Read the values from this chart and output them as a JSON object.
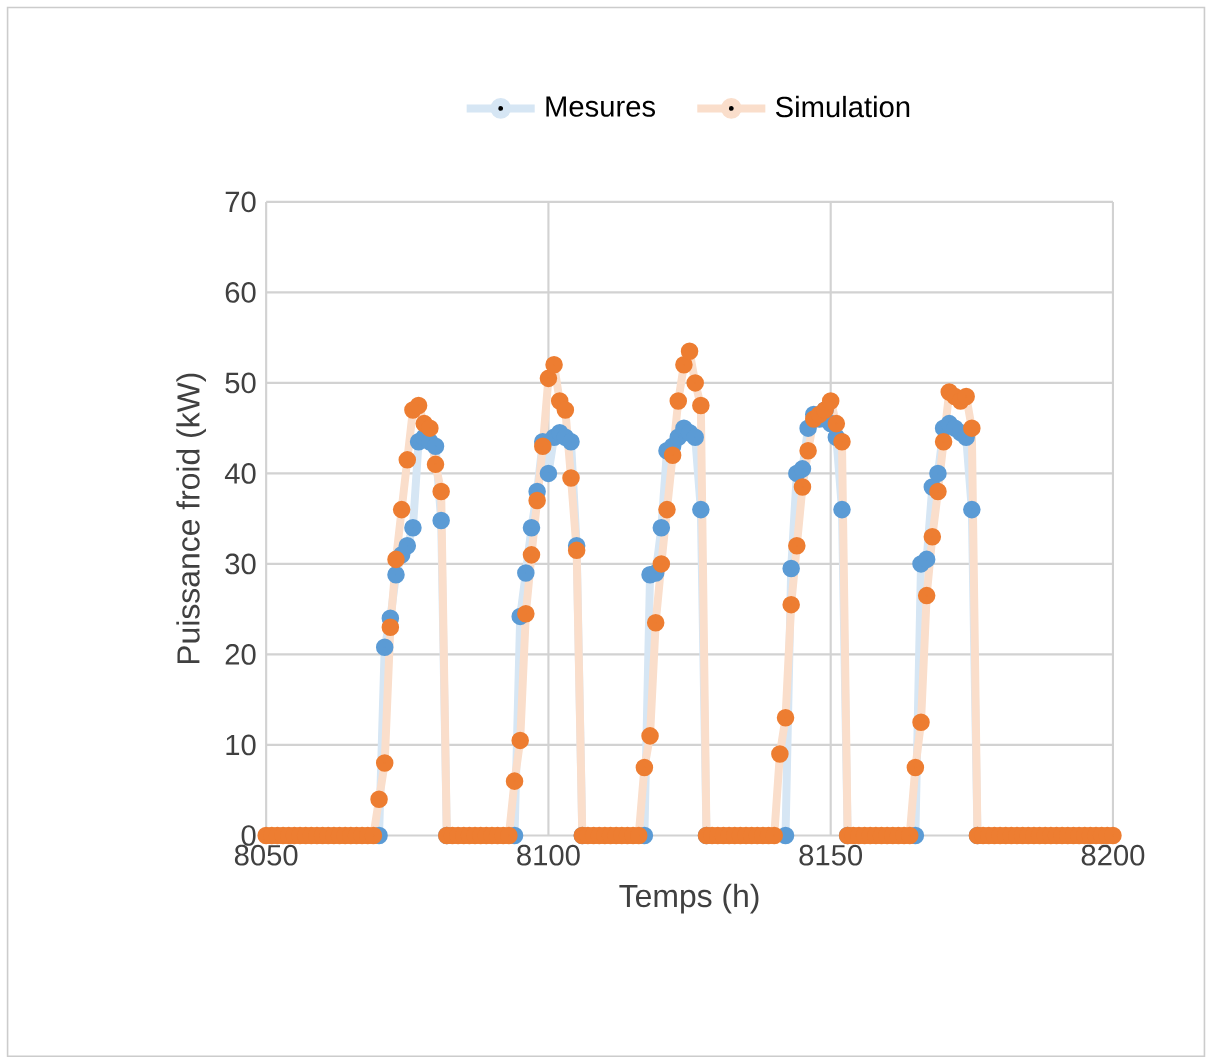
{
  "chart_data": {
    "type": "line",
    "xlabel": "Temps (h)",
    "ylabel": "Puissance froid (kW)",
    "x": [
      8050,
      8051,
      8052,
      8053,
      8054,
      8055,
      8056,
      8057,
      8058,
      8059,
      8060,
      8061,
      8062,
      8063,
      8064,
      8065,
      8066,
      8067,
      8068,
      8069,
      8070,
      8071,
      8072,
      8073,
      8074,
      8075,
      8076,
      8077,
      8078,
      8079,
      8080,
      8081,
      8082,
      8083,
      8084,
      8085,
      8086,
      8087,
      8088,
      8089,
      8090,
      8091,
      8092,
      8093,
      8094,
      8095,
      8096,
      8097,
      8098,
      8099,
      8100,
      8101,
      8102,
      8103,
      8104,
      8105,
      8106,
      8107,
      8108,
      8109,
      8110,
      8111,
      8112,
      8113,
      8114,
      8115,
      8116,
      8117,
      8118,
      8119,
      8120,
      8121,
      8122,
      8123,
      8124,
      8125,
      8126,
      8127,
      8128,
      8129,
      8130,
      8131,
      8132,
      8133,
      8134,
      8135,
      8136,
      8137,
      8138,
      8139,
      8140,
      8141,
      8142,
      8143,
      8144,
      8145,
      8146,
      8147,
      8148,
      8149,
      8150,
      8151,
      8152,
      8153,
      8154,
      8155,
      8156,
      8157,
      8158,
      8159,
      8160,
      8161,
      8162,
      8163,
      8164,
      8165,
      8166,
      8167,
      8168,
      8169,
      8170,
      8171,
      8172,
      8173,
      8174,
      8175,
      8176,
      8177,
      8178,
      8179,
      8180,
      8181,
      8182,
      8183,
      8184,
      8185,
      8186,
      8187,
      8188,
      8189,
      8190,
      8191,
      8192,
      8193,
      8194,
      8195,
      8196,
      8197,
      8198,
      8199,
      8200
    ],
    "series": [
      {
        "name": "Mesures",
        "color": "#5b9bd5",
        "values": [
          null,
          null,
          null,
          null,
          null,
          null,
          null,
          null,
          null,
          null,
          null,
          null,
          null,
          null,
          null,
          null,
          null,
          null,
          null,
          null,
          0,
          20.8,
          24,
          28.8,
          31,
          32,
          34,
          43.5,
          44,
          43.5,
          43,
          34.8,
          0,
          null,
          null,
          null,
          null,
          null,
          null,
          null,
          null,
          null,
          null,
          null,
          0,
          24.2,
          29,
          34,
          38,
          43.5,
          40,
          44,
          44.5,
          44,
          43.5,
          32,
          0,
          null,
          null,
          null,
          null,
          null,
          null,
          null,
          null,
          null,
          null,
          0,
          28.8,
          29,
          34,
          42.5,
          43,
          44,
          45,
          44.5,
          44,
          36,
          0,
          null,
          null,
          null,
          null,
          null,
          null,
          null,
          null,
          null,
          null,
          null,
          null,
          null,
          0,
          29.5,
          40,
          40.5,
          45,
          46.5,
          46,
          47,
          45.5,
          44,
          36,
          0,
          null,
          null,
          null,
          null,
          null,
          null,
          null,
          null,
          null,
          null,
          null,
          0,
          30,
          30.5,
          38.5,
          40,
          45,
          45.5,
          45,
          44.5,
          44,
          36,
          0,
          null,
          null,
          null,
          null,
          null,
          null,
          null,
          null,
          null,
          null,
          null,
          null,
          null,
          null,
          null,
          null,
          null,
          null,
          null,
          null,
          null,
          null,
          null,
          null
        ]
      },
      {
        "name": "Simulation",
        "color": "#ed7d31",
        "values": [
          0,
          0,
          0,
          0,
          0,
          0,
          0,
          0,
          0,
          0,
          0,
          0,
          0,
          0,
          0,
          0,
          0,
          0,
          0,
          0,
          4,
          8,
          23,
          30.5,
          36,
          41.5,
          47,
          47.5,
          45.5,
          45,
          41,
          38,
          0,
          0,
          0,
          0,
          0,
          0,
          0,
          0,
          0,
          0,
          0,
          0,
          6,
          10.5,
          24.5,
          31,
          37,
          43,
          50.5,
          52,
          48,
          47,
          39.5,
          31.5,
          0,
          0,
          0,
          0,
          0,
          0,
          0,
          0,
          0,
          0,
          0,
          7.5,
          11,
          23.5,
          30,
          36,
          42,
          48,
          52,
          53.5,
          50,
          47.5,
          0,
          0,
          0,
          0,
          0,
          0,
          0,
          0,
          0,
          0,
          0,
          0,
          0,
          9,
          13,
          25.5,
          32,
          38.5,
          42.5,
          46,
          46.5,
          47,
          48,
          45.5,
          43.5,
          0,
          0,
          0,
          0,
          0,
          0,
          0,
          0,
          0,
          0,
          0,
          0,
          7.5,
          12.5,
          26.5,
          33,
          38,
          43.5,
          49,
          48.5,
          48,
          48.5,
          45,
          0,
          0,
          0,
          0,
          0,
          0,
          0,
          0,
          0,
          0,
          0,
          0,
          0,
          0,
          0,
          0,
          0,
          0,
          0,
          0,
          0,
          0,
          0,
          0,
          0
        ]
      }
    ],
    "xlim": [
      8050,
      8200
    ],
    "xticks": [
      8050,
      8100,
      8150,
      8200
    ],
    "ylim": [
      0,
      70
    ],
    "yticks": [
      0,
      10,
      20,
      30,
      40,
      50,
      60,
      70
    ],
    "grid": true,
    "legend": "top",
    "marker": "circle",
    "line_style": "solid"
  }
}
